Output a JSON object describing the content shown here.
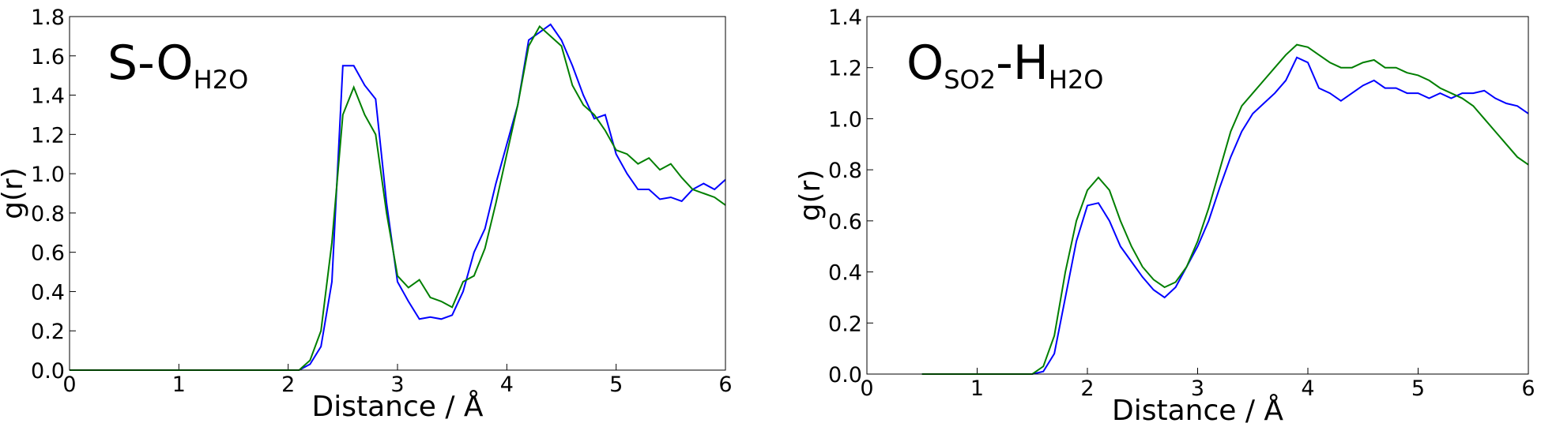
{
  "chart_data": [
    {
      "type": "line",
      "annotation": [
        {
          "text": "S-O"
        },
        {
          "sub": "H2O"
        }
      ],
      "xlabel": "Distance / Å",
      "ylabel": "g(r)",
      "xlim": [
        0,
        6
      ],
      "ylim": [
        0,
        1.8
      ],
      "xticks": [
        0,
        1,
        2,
        3,
        4,
        5,
        6
      ],
      "yticks": [
        {
          "value": 0,
          "label": "0.0"
        },
        0.2,
        0.4,
        0.6,
        0.8,
        {
          "value": 1,
          "label": "1.0"
        },
        1.2,
        1.4,
        1.6,
        1.8
      ],
      "x": [
        0,
        0.1,
        0.2,
        0.3,
        0.4,
        0.5,
        0.6,
        0.7,
        0.8,
        0.9,
        1,
        1.1,
        1.2,
        1.3,
        1.4,
        1.5,
        1.6,
        1.7,
        1.8,
        1.9,
        2,
        2.1,
        2.2,
        2.3,
        2.4,
        2.5,
        2.6,
        2.7,
        2.8,
        2.9,
        3,
        3.1,
        3.2,
        3.3,
        3.4,
        3.5,
        3.6,
        3.7,
        3.8,
        3.9,
        4,
        4.1,
        4.2,
        4.3,
        4.4,
        4.5,
        4.6,
        4.7,
        4.8,
        4.9,
        5,
        5.1,
        5.2,
        5.3,
        5.4,
        5.5,
        5.6,
        5.7,
        5.8,
        5.9,
        6
      ],
      "series": [
        {
          "color": "#0000ff",
          "values": [
            0,
            0,
            0,
            0,
            0,
            0,
            0,
            0,
            0,
            0,
            0,
            0,
            0,
            0,
            0,
            0,
            0,
            0,
            0,
            0,
            0,
            0,
            0.03,
            0.12,
            0.45,
            1.55,
            1.55,
            1.45,
            1.38,
            0.85,
            0.45,
            0.35,
            0.26,
            0.27,
            0.26,
            0.28,
            0.4,
            0.6,
            0.72,
            0.95,
            1.15,
            1.35,
            1.68,
            1.72,
            1.76,
            1.68,
            1.55,
            1.4,
            1.28,
            1.3,
            1.1,
            1.0,
            0.92,
            0.92,
            0.87,
            0.88,
            0.86,
            0.92,
            0.95,
            0.92,
            0.97
          ]
        },
        {
          "color": "#007f00",
          "values": [
            0,
            0,
            0,
            0,
            0,
            0,
            0,
            0,
            0,
            0,
            0,
            0,
            0,
            0,
            0,
            0,
            0,
            0,
            0,
            0,
            0,
            0,
            0.05,
            0.2,
            0.65,
            1.3,
            1.44,
            1.3,
            1.2,
            0.8,
            0.48,
            0.42,
            0.46,
            0.37,
            0.35,
            0.32,
            0.45,
            0.48,
            0.62,
            0.85,
            1.1,
            1.35,
            1.65,
            1.75,
            1.7,
            1.65,
            1.45,
            1.35,
            1.3,
            1.22,
            1.12,
            1.1,
            1.05,
            1.08,
            1.02,
            1.05,
            0.98,
            0.92,
            0.9,
            0.88,
            0.84
          ]
        }
      ]
    },
    {
      "type": "line",
      "annotation": [
        {
          "text": "O"
        },
        {
          "sub": "SO2"
        },
        {
          "text": "-H"
        },
        {
          "sub": "H2O"
        }
      ],
      "xlabel": "Distance / Å",
      "ylabel": "g(r)",
      "xlim": [
        0,
        6
      ],
      "ylim": [
        0,
        1.4
      ],
      "xticks": [
        0,
        1,
        2,
        3,
        4,
        5,
        6
      ],
      "yticks": [
        {
          "value": 0,
          "label": "0.0"
        },
        0.2,
        0.4,
        0.6,
        0.8,
        {
          "value": 1,
          "label": "1.0"
        },
        1.2,
        1.4
      ],
      "x": [
        0.5,
        0.6,
        0.7,
        0.8,
        0.9,
        1,
        1.1,
        1.2,
        1.3,
        1.4,
        1.5,
        1.6,
        1.7,
        1.8,
        1.9,
        2,
        2.1,
        2.2,
        2.3,
        2.4,
        2.5,
        2.6,
        2.7,
        2.8,
        2.9,
        3,
        3.1,
        3.2,
        3.3,
        3.4,
        3.5,
        3.6,
        3.7,
        3.8,
        3.9,
        4,
        4.1,
        4.2,
        4.3,
        4.4,
        4.5,
        4.6,
        4.7,
        4.8,
        4.9,
        5,
        5.1,
        5.2,
        5.3,
        5.4,
        5.5,
        5.6,
        5.7,
        5.8,
        5.9,
        6
      ],
      "series": [
        {
          "color": "#0000ff",
          "values": [
            0,
            0,
            0,
            0,
            0,
            0,
            0,
            0,
            0,
            0,
            0,
            0.01,
            0.08,
            0.3,
            0.52,
            0.66,
            0.67,
            0.6,
            0.5,
            0.44,
            0.38,
            0.33,
            0.3,
            0.34,
            0.42,
            0.5,
            0.6,
            0.73,
            0.85,
            0.95,
            1.02,
            1.06,
            1.1,
            1.15,
            1.24,
            1.22,
            1.12,
            1.1,
            1.07,
            1.1,
            1.13,
            1.15,
            1.12,
            1.12,
            1.1,
            1.1,
            1.08,
            1.1,
            1.08,
            1.1,
            1.1,
            1.11,
            1.08,
            1.06,
            1.05,
            1.02
          ]
        },
        {
          "color": "#007f00",
          "values": [
            0,
            0,
            0,
            0,
            0,
            0,
            0,
            0,
            0,
            0,
            0,
            0.03,
            0.15,
            0.4,
            0.6,
            0.72,
            0.77,
            0.72,
            0.6,
            0.5,
            0.42,
            0.37,
            0.34,
            0.36,
            0.42,
            0.52,
            0.65,
            0.8,
            0.95,
            1.05,
            1.1,
            1.15,
            1.2,
            1.25,
            1.29,
            1.28,
            1.25,
            1.22,
            1.2,
            1.2,
            1.22,
            1.23,
            1.2,
            1.2,
            1.18,
            1.17,
            1.15,
            1.12,
            1.1,
            1.08,
            1.05,
            1.0,
            0.95,
            0.9,
            0.85,
            0.82
          ]
        }
      ]
    }
  ]
}
